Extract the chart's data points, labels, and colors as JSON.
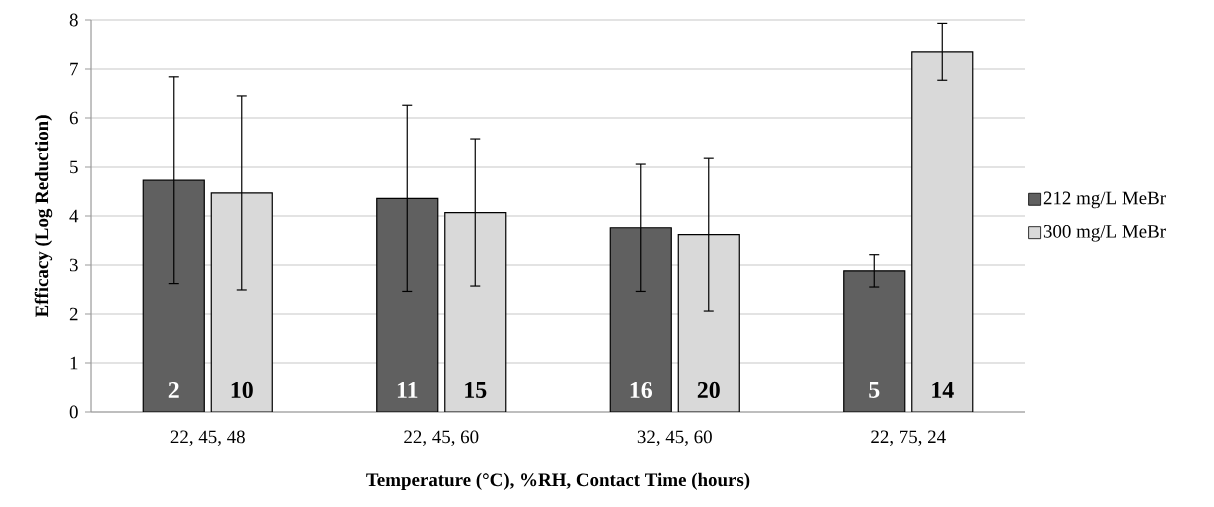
{
  "chart_data": {
    "type": "bar",
    "xlabel": "Temperature (°C), %RH, Contact Time (hours)",
    "ylabel": "Efficacy (Log Reduction)",
    "categories": [
      "22, 45, 48",
      "22, 45, 60",
      "32, 45, 60",
      "22, 75, 24"
    ],
    "series": [
      {
        "name": "212 mg/L MeBr",
        "color": "#606060",
        "values": [
          4.73,
          4.36,
          3.76,
          2.88
        ],
        "errors": [
          2.11,
          1.9,
          1.3,
          0.33
        ]
      },
      {
        "name": "300 mg/L MeBr",
        "color": "#d9d9d9",
        "values": [
          4.47,
          4.07,
          3.62,
          7.35
        ],
        "errors": [
          1.98,
          1.5,
          1.56,
          0.58
        ]
      }
    ],
    "annotations": [
      {
        "text": "2",
        "x": "22, 45, 48",
        "y": 0.45
      },
      {
        "text": "10",
        "x": "22, 45, 48",
        "y": 0.45
      },
      {
        "text": "11",
        "x": "22, 45, 60",
        "y": 0.45
      },
      {
        "text": "15",
        "x": "22, 45, 60",
        "y": 0.45
      },
      {
        "text": "16",
        "x": "32, 45, 60",
        "y": 0.45
      },
      {
        "text": "20",
        "x": "32, 45, 60",
        "y": 0.45
      },
      {
        "text": "5",
        "x": "22, 75, 24",
        "y": 0.45
      },
      {
        "text": "14",
        "x": "22, 75, 24",
        "y": 0.45
      }
    ],
    "ylim": [
      0,
      8
    ],
    "yticks": [
      0,
      1,
      2,
      3,
      4,
      5,
      6,
      7,
      8
    ],
    "grid": "y",
    "legend": "right"
  }
}
